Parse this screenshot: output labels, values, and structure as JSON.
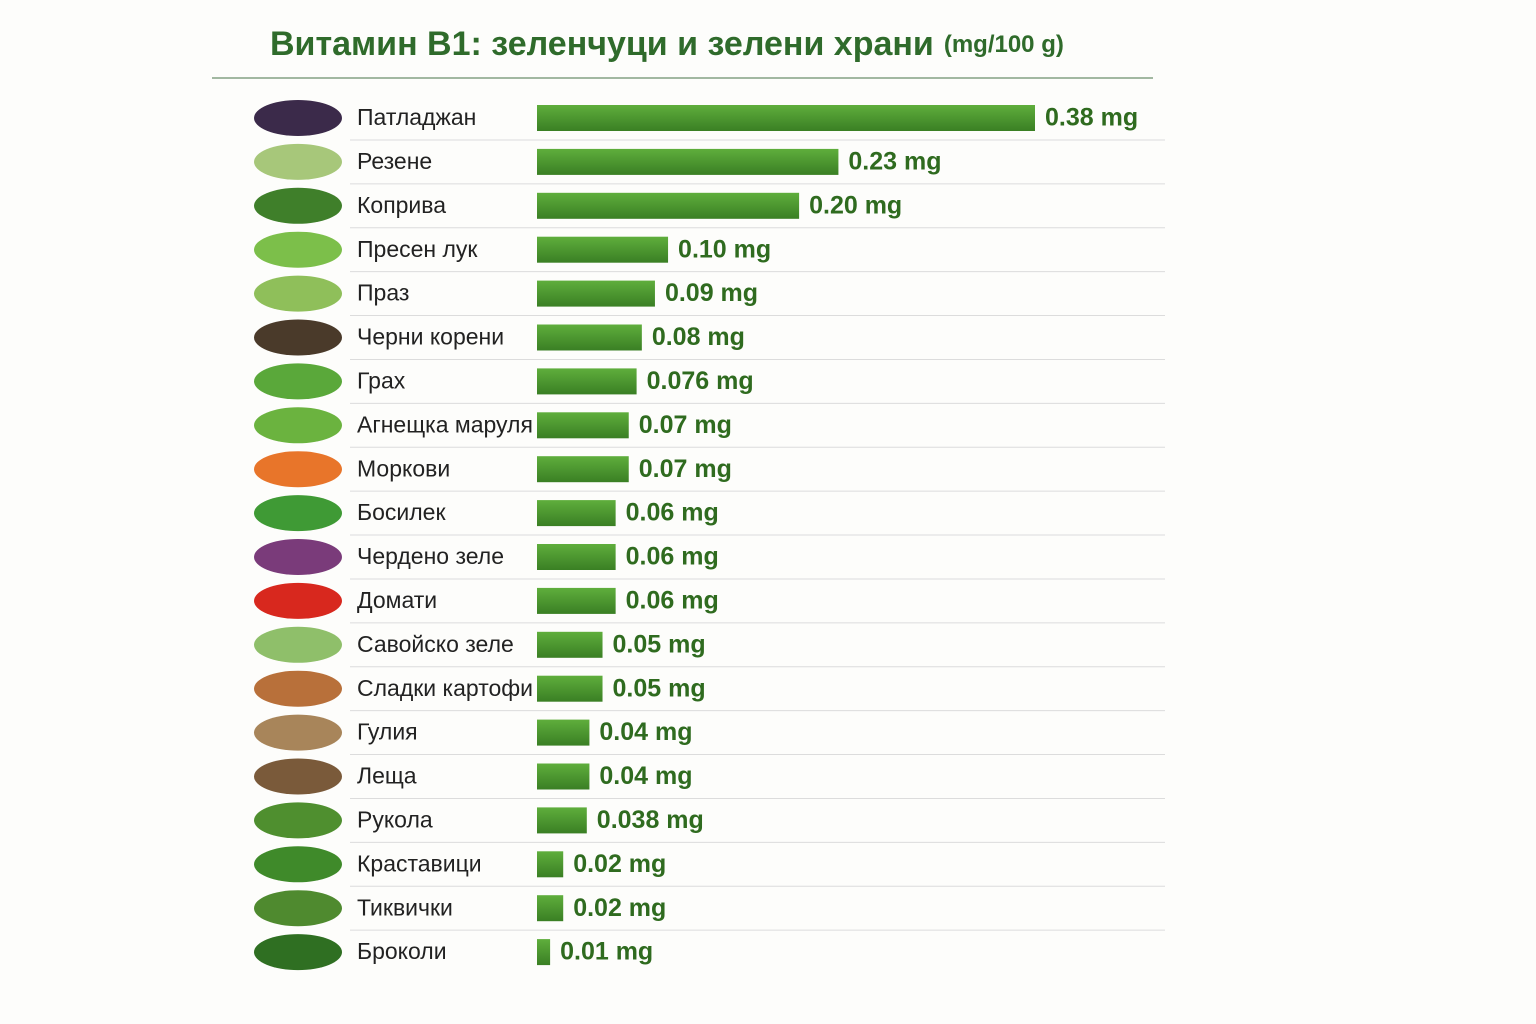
{
  "chart_data": {
    "type": "bar",
    "orientation": "horizontal",
    "title": "Витамин B1: зеленчуци и зелени храни",
    "subtitle": "(mg/100 g)",
    "categories": [
      "Патладжан",
      "Резене",
      "Коприва",
      "Пресен лук",
      "Праз",
      "Черни корени",
      "Грах",
      "Агнещка маруля",
      "Моркови",
      "Босилек",
      "Чердено зеле",
      "Домати",
      "Савойско зеле",
      "Сладки картофи",
      "Гулия",
      "Леща",
      "Рукола",
      "Краставици",
      "Тиквички",
      "Броколи"
    ],
    "values": [
      0.38,
      0.23,
      0.2,
      0.1,
      0.09,
      0.08,
      0.076,
      0.07,
      0.07,
      0.06,
      0.06,
      0.06,
      0.05,
      0.05,
      0.04,
      0.04,
      0.038,
      0.02,
      0.02,
      0.01
    ],
    "value_labels": [
      "0.38 mg",
      "0.23 mg",
      "0.20 mg",
      "0.10 mg",
      "0.09 mg",
      "0.08 mg",
      "0.076 mg",
      "0.07 mg",
      "0.07 mg",
      "0.06 mg",
      "0.06 mg",
      "0.06 mg",
      "0.05 mg",
      "0.05 mg",
      "0.04 mg",
      "0.04 mg",
      "0.038 mg",
      "0.02 mg",
      "0.02 mg",
      "0.01 mg"
    ],
    "color": "#4a9a2e"
  }
}
